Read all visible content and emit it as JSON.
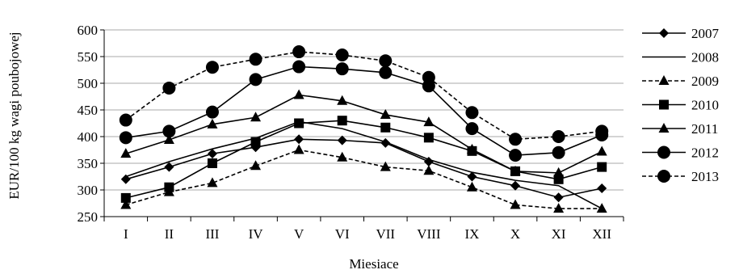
{
  "chart_data": {
    "type": "line",
    "title": "",
    "xlabel": "Miesiace",
    "ylabel": "EUR/100 kg wagi poubojowej",
    "ylim": [
      250,
      600
    ],
    "yticks": [
      250,
      300,
      350,
      400,
      450,
      500,
      550,
      600
    ],
    "categories": [
      "I",
      "II",
      "III",
      "IV",
      "V",
      "VI",
      "VII",
      "VIII",
      "IX",
      "X",
      "XI",
      "XII"
    ],
    "grid": true,
    "legend_position": "right",
    "series": [
      {
        "name": "2007",
        "marker": "diamond",
        "dash": "solid",
        "values": [
          320,
          343,
          368,
          380,
          395,
          393,
          388,
          353,
          325,
          308,
          286,
          303
        ]
      },
      {
        "name": "2008",
        "marker": "none",
        "dash": "solid",
        "values": [
          325,
          353,
          377,
          397,
          428,
          415,
          390,
          357,
          333,
          318,
          308,
          265
        ]
      },
      {
        "name": "2009",
        "marker": "triangle",
        "dash": "dashed",
        "values": [
          272,
          296,
          313,
          345,
          375,
          361,
          343,
          336,
          305,
          272,
          265,
          265
        ]
      },
      {
        "name": "2010",
        "marker": "square",
        "dash": "solid",
        "values": [
          285,
          305,
          350,
          390,
          425,
          430,
          417,
          398,
          373,
          335,
          320,
          343
        ]
      },
      {
        "name": "2011",
        "marker": "triangle",
        "dash": "solid",
        "values": [
          368,
          394,
          423,
          436,
          478,
          467,
          441,
          427,
          376,
          335,
          332,
          372
        ]
      },
      {
        "name": "2012",
        "marker": "circle",
        "dash": "solid",
        "values": [
          398,
          410,
          446,
          507,
          531,
          527,
          520,
          495,
          415,
          365,
          370,
          403
        ]
      },
      {
        "name": "2013",
        "marker": "circle",
        "dash": "dashed",
        "values": [
          431,
          491,
          530,
          545,
          559,
          553,
          542,
          511,
          445,
          395,
          400,
          410
        ]
      }
    ]
  }
}
